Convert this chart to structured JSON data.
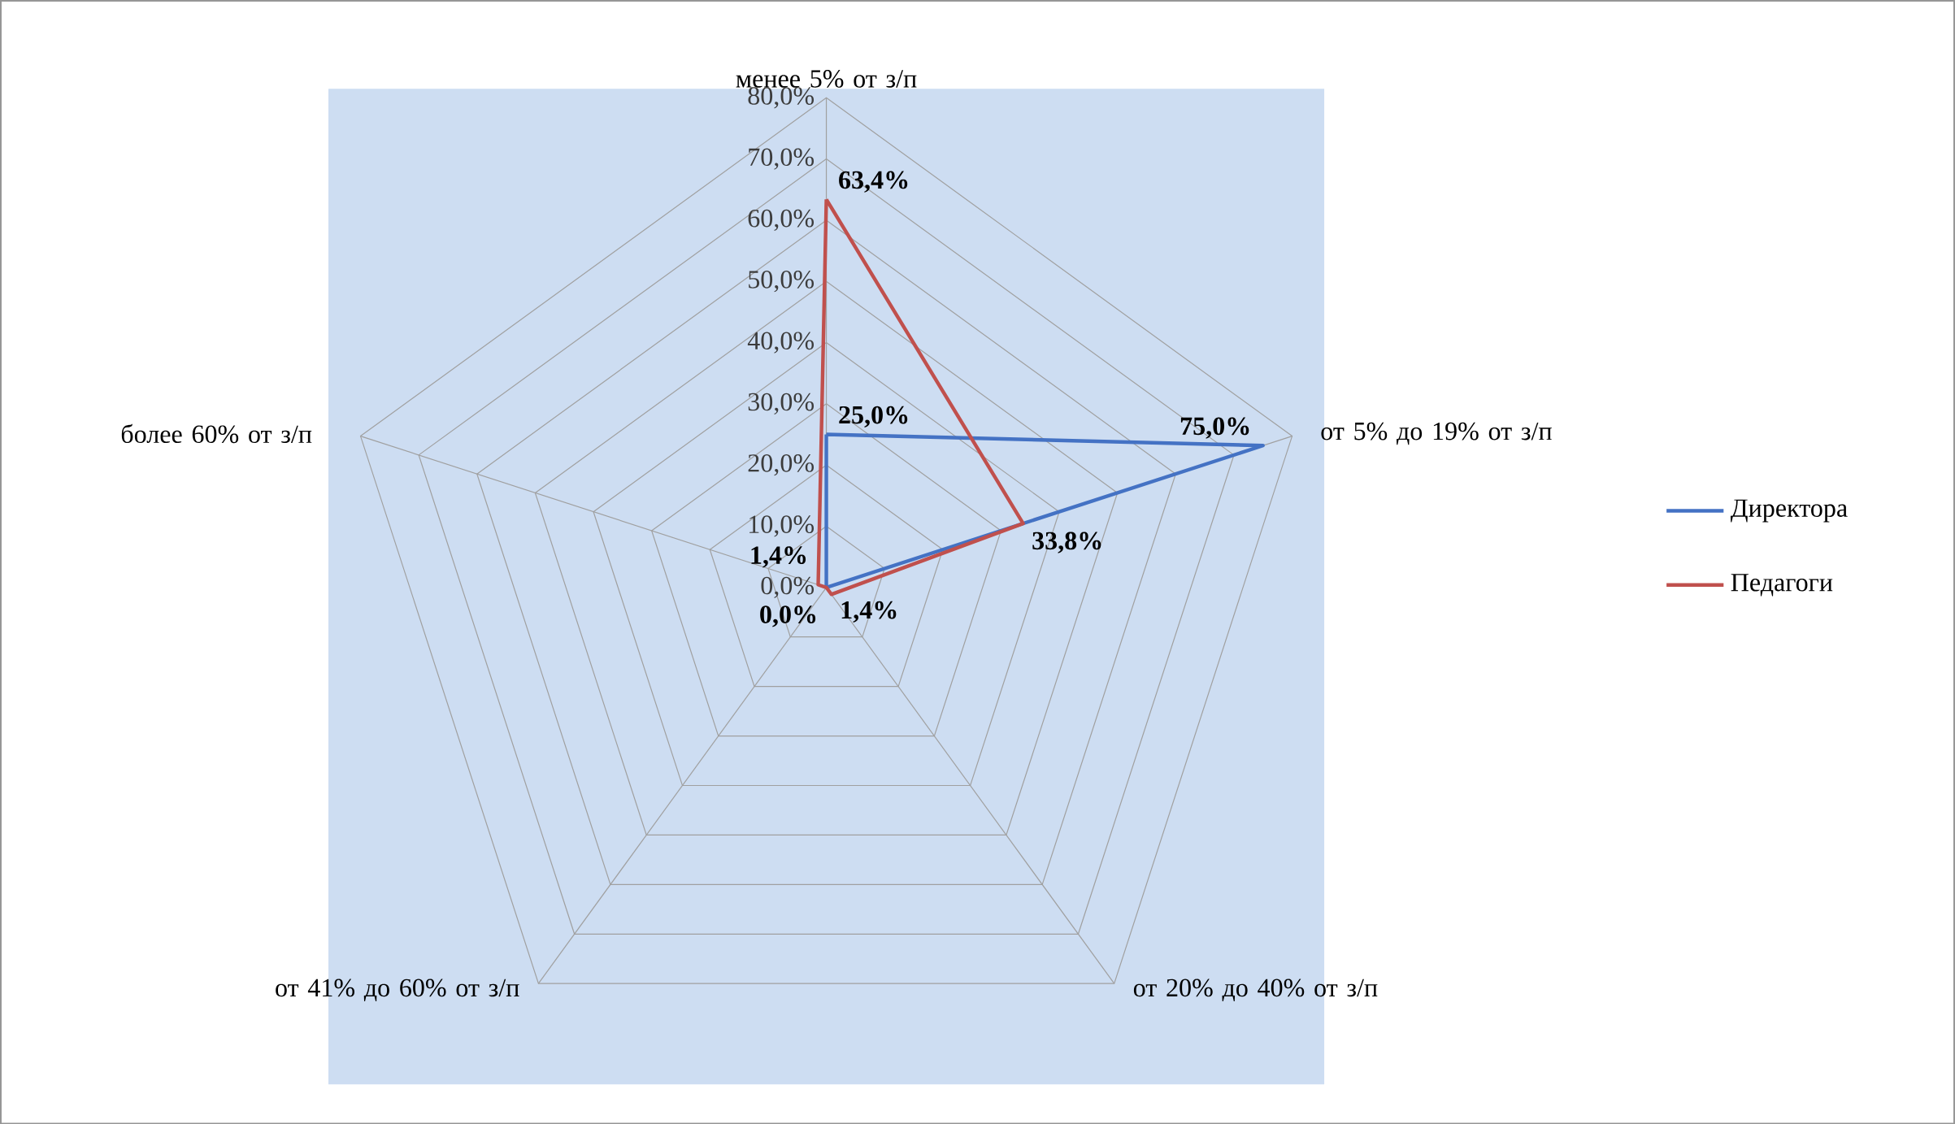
{
  "chart_data": {
    "type": "radar",
    "categories": [
      "менее 5% от з/п",
      "от 5% до 19% от з/п",
      "от 20% до 40% от з/п",
      "от 41% до 60% от з/п",
      "более 60% от з/п"
    ],
    "series": [
      {
        "name": "Директора",
        "color": "#4472c4",
        "values": [
          25.0,
          75.0,
          0.0,
          0.0,
          0.0
        ],
        "value_labels": [
          "25,0%",
          "75,0%",
          null,
          null,
          null
        ]
      },
      {
        "name": "Педагоги",
        "color": "#c0504d",
        "values": [
          63.4,
          33.8,
          1.4,
          0.0,
          1.4
        ],
        "value_labels": [
          "63,4%",
          "33,8%",
          "1,4%",
          "0,0%",
          "1,4%"
        ]
      }
    ],
    "ylim": [
      0,
      80
    ],
    "yticks": [
      {
        "value": 0,
        "label": "0,0%"
      },
      {
        "value": 10,
        "label": "10,0%"
      },
      {
        "value": 20,
        "label": "20,0%"
      },
      {
        "value": 30,
        "label": "30,0%"
      },
      {
        "value": 40,
        "label": "40,0%"
      },
      {
        "value": 50,
        "label": "50,0%"
      },
      {
        "value": 60,
        "label": "60,0%"
      },
      {
        "value": 70,
        "label": "70,0%"
      },
      {
        "value": 80,
        "label": "80,0%"
      }
    ],
    "grid": true,
    "legend": "right"
  }
}
